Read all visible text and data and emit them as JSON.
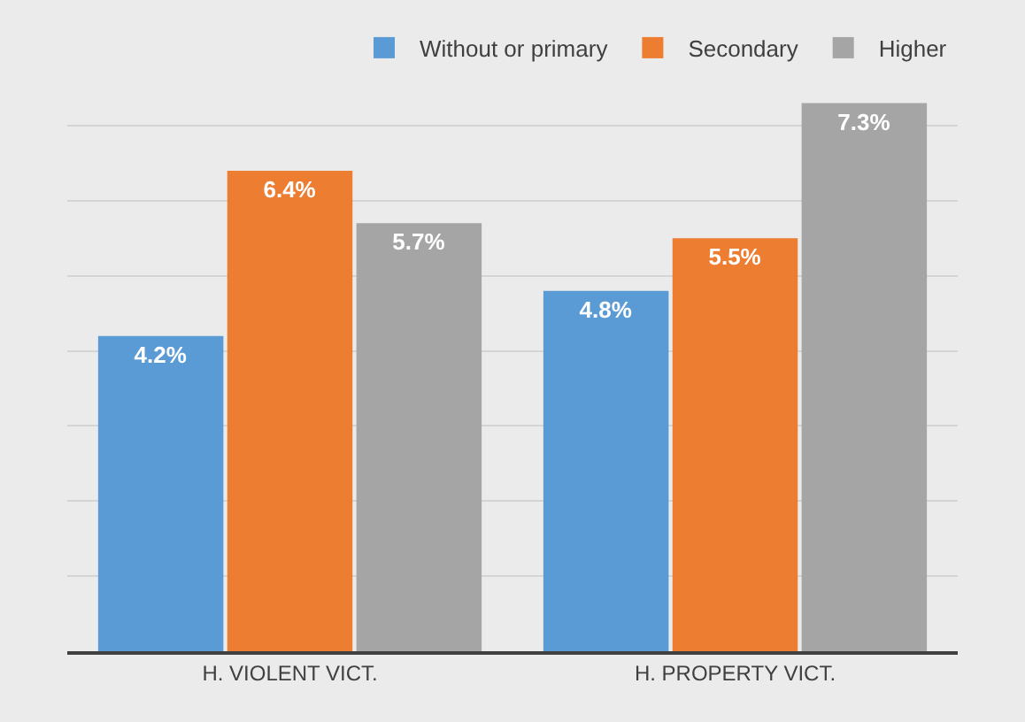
{
  "chart_data": {
    "type": "bar",
    "categories": [
      "H. VIOLENT VICT.",
      "H. PROPERTY VICT."
    ],
    "series": [
      {
        "name": "Without or primary",
        "color": "#5b9bd5",
        "values": [
          4.2,
          4.8
        ],
        "value_labels": [
          "4.2%",
          "4.8%"
        ]
      },
      {
        "name": "Secondary",
        "color": "#ed7d31",
        "values": [
          6.4,
          5.5
        ],
        "value_labels": [
          "6.4%",
          "5.5%"
        ]
      },
      {
        "name": "Higher",
        "color": "#a5a5a5",
        "values": [
          5.7,
          7.3
        ],
        "value_labels": [
          "5.7%",
          "7.3%"
        ]
      }
    ],
    "grid": "y",
    "legend": "top right",
    "tick_labels": "x"
  }
}
